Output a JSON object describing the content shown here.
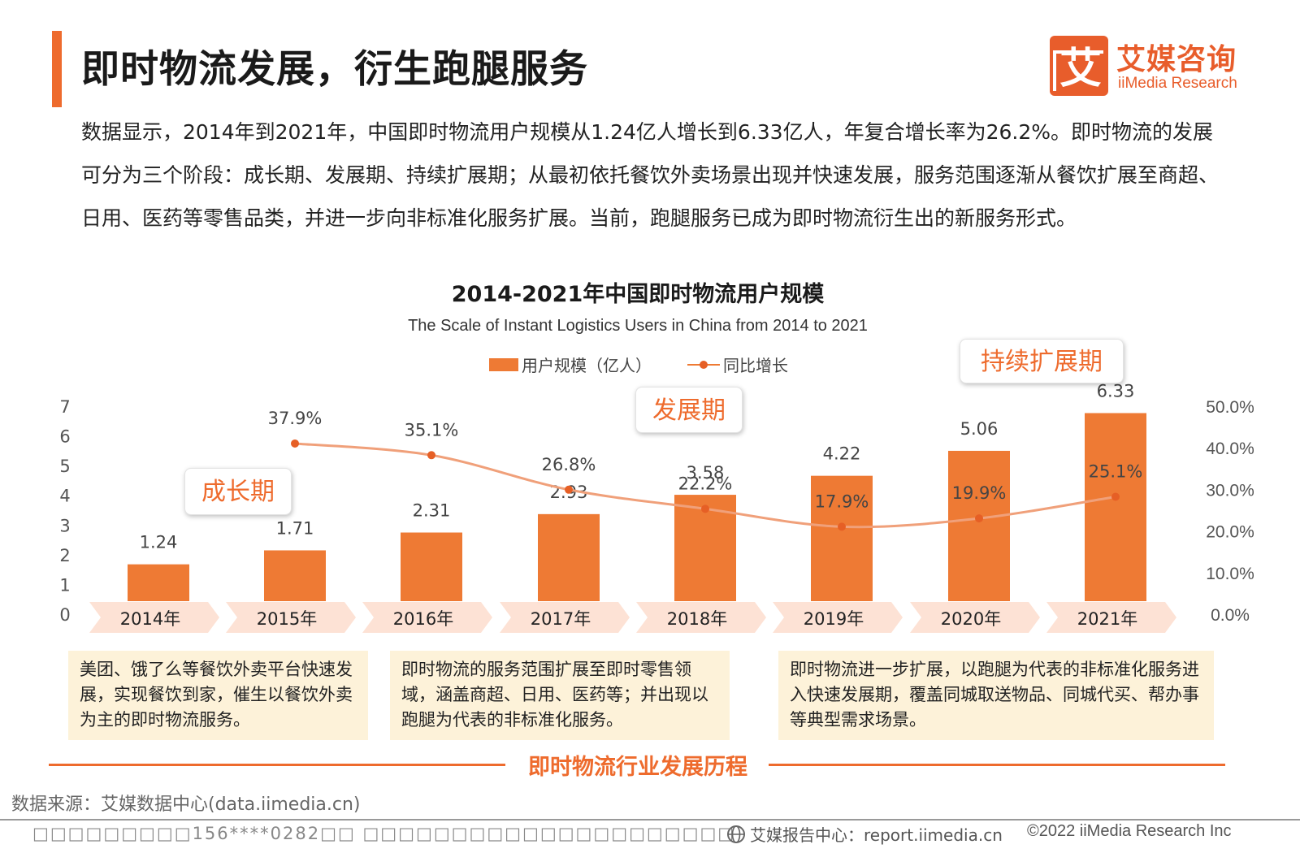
{
  "header": {
    "title": "即时物流发展，衍生跑腿服务"
  },
  "logo": {
    "cn": "艾媒咨询",
    "en": "iiMedia Research",
    "mark_char": "艾",
    "color": "#e85d2b"
  },
  "intro": {
    "text": "数据显示，2014年到2021年，中国即时物流用户规模从1.24亿人增长到6.33亿人，年复合增长率为26.2%。即时物流的发展可分为三个阶段：成长期、发展期、持续扩展期；从最初依托餐饮外卖场景出现并快速发展，服务范围逐渐从餐饮扩展至商超、日用、医药等零售品类，并进一步向非标准化服务扩展。当前，跑腿服务已成为即时物流衍生出的新服务形式。"
  },
  "chart_data": {
    "type": "bar",
    "title": "2014-2021年中国即时物流用户规模",
    "subtitle": "The Scale of Instant Logistics Users in China from 2014 to 2021",
    "categories": [
      "2014年",
      "2015年",
      "2016年",
      "2017年",
      "2018年",
      "2019年",
      "2020年",
      "2021年"
    ],
    "series": [
      {
        "name": "用户规模（亿人）",
        "type": "bar",
        "axis": "left",
        "values": [
          1.24,
          1.71,
          2.31,
          2.93,
          3.58,
          4.22,
          5.06,
          6.33
        ],
        "labels": [
          "1.24",
          "1.71",
          "2.31",
          "2.93",
          "3.58",
          "4.22",
          "5.06",
          "6.33"
        ]
      },
      {
        "name": "同比增长",
        "type": "line",
        "axis": "right",
        "values": [
          null,
          37.9,
          35.1,
          26.8,
          22.2,
          17.9,
          19.9,
          25.1
        ],
        "labels": [
          "",
          "37.9%",
          "35.1%",
          "26.8%",
          "22.2%",
          "17.9%",
          "19.9%",
          "25.1%"
        ]
      }
    ],
    "ylim_left": [
      0,
      7
    ],
    "yticks_left": [
      "0",
      "1",
      "2",
      "3",
      "4",
      "5",
      "6",
      "7"
    ],
    "ylim_right": [
      0,
      50
    ],
    "yticks_right": [
      "0.0%",
      "10.0%",
      "20.0%",
      "30.0%",
      "40.0%",
      "50.0%"
    ],
    "legend_position": "top-center",
    "grid": false,
    "colors": {
      "bar": "#ee7a34",
      "line": "#f0a07a",
      "marker": "#e65f25",
      "category_band": "#fde2d5"
    }
  },
  "phases": [
    {
      "label": "成长期"
    },
    {
      "label": "发展期"
    },
    {
      "label": "持续扩展期"
    }
  ],
  "descriptions": [
    "美团、饿了么等餐饮外卖平台快速发展，实现餐饮到家，催生以餐饮外卖为主的即时物流服务。",
    "即时物流的服务范围扩展至即时零售领域，涵盖商超、日用、医药等；并出现以跑腿为代表的非标准化服务。",
    "即时物流进一步扩展，以跑腿为代表的非标准化服务进入快速发展期，覆盖同城取送物品、同城代买、帮办事等典型需求场景。"
  ],
  "history": {
    "label": "即时物流行业发展历程"
  },
  "footer": {
    "source": "数据来源：艾媒数据中心(data.iimedia.cn)",
    "watermark": "□□□□□□□□□156****0282□□ □□□□□□□□□□□□□□□□□□□□□",
    "report": "艾媒报告中心：report.iimedia.cn",
    "copyright": "©2022  iiMedia Research  Inc"
  }
}
